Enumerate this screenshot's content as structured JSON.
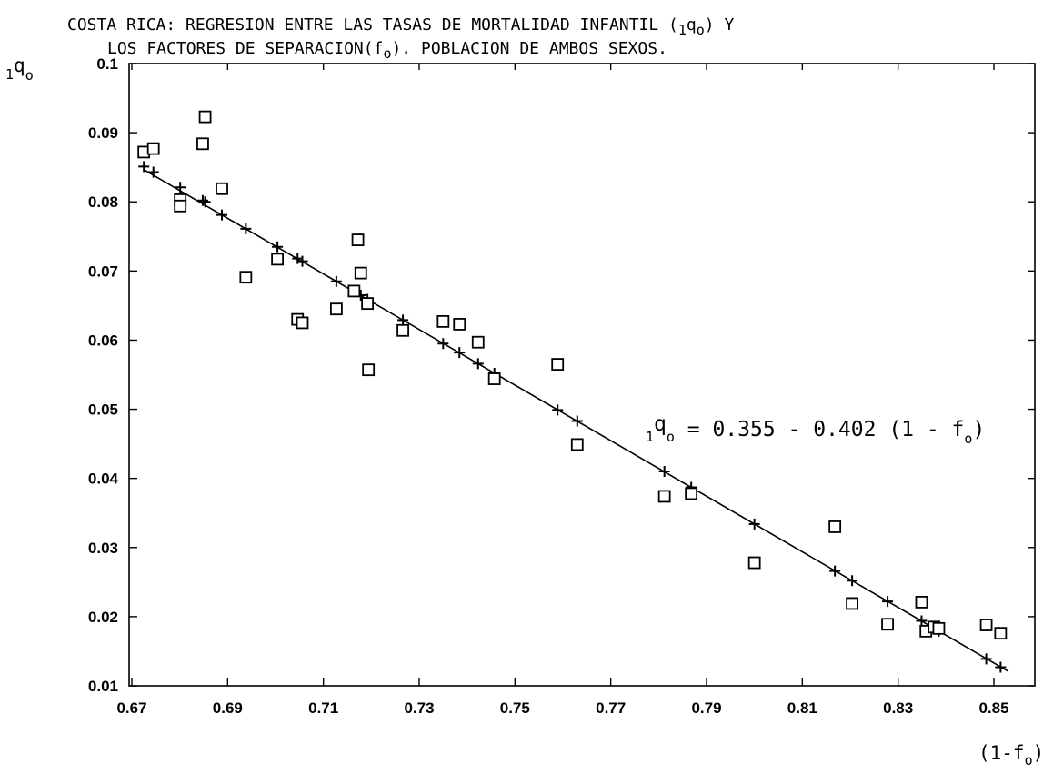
{
  "chart_data": {
    "type": "scatter",
    "title": {
      "line1_pre": "COSTA RICA: REGRESION ENTRE LAS TASAS DE MORTALIDAD INFANTIL (",
      "line1_q_sub_pre": "1",
      "line1_q": "q",
      "line1_q_sub_post": "o",
      "line1_post": ") Y",
      "line2_pre": "LOS FACTORES DE SEPARACION(f",
      "line2_sub": "o",
      "line2_post": "). POBLACION DE AMBOS SEXOS."
    },
    "ylabel": {
      "pre": "1",
      "main": "q",
      "sub": "o"
    },
    "xlabel": {
      "pre": "(1-f",
      "sub": "o",
      "post": ")"
    },
    "equation": {
      "pre": "1",
      "main": "q",
      "sub": "o",
      "rhs_pre": " = 0.355 - 0.402 (1 - f",
      "rhs_sub": "o",
      "rhs_post": ")"
    },
    "xlim": [
      0.67,
      0.855
    ],
    "ylim": [
      0.01,
      0.1
    ],
    "x_ticks": [
      0.67,
      0.69,
      0.71,
      0.73,
      0.75,
      0.77,
      0.79,
      0.81,
      0.83,
      0.85
    ],
    "x_tick_labels": [
      "0.67",
      "0.69",
      "0.71",
      "0.73",
      "0.75",
      "0.77",
      "0.79",
      "0.81",
      "0.83",
      "0.85"
    ],
    "y_ticks": [
      0.01,
      0.02,
      0.03,
      0.04,
      0.05,
      0.06,
      0.07,
      0.08,
      0.09,
      0.1
    ],
    "y_tick_labels": [
      "0.01",
      "0.02",
      "0.03",
      "0.04",
      "0.05",
      "0.06",
      "0.07",
      "0.08",
      "0.09",
      "0.1"
    ],
    "grid": false,
    "regression": {
      "intercept": 0.355,
      "slope": -0.402
    },
    "series": [
      {
        "marker": "square",
        "points": [
          [
            0.6725,
            0.0872
          ],
          [
            0.6745,
            0.0877
          ],
          [
            0.6801,
            0.0803
          ],
          [
            0.6801,
            0.0794
          ],
          [
            0.6848,
            0.0884
          ],
          [
            0.6853,
            0.0923
          ],
          [
            0.6888,
            0.0819
          ],
          [
            0.6938,
            0.0691
          ],
          [
            0.7004,
            0.0717
          ],
          [
            0.7046,
            0.063
          ],
          [
            0.7056,
            0.0625
          ],
          [
            0.7127,
            0.0645
          ],
          [
            0.7164,
            0.0671
          ],
          [
            0.7172,
            0.0745
          ],
          [
            0.7178,
            0.0697
          ],
          [
            0.7192,
            0.0653
          ],
          [
            0.7194,
            0.0557
          ],
          [
            0.7266,
            0.0614
          ],
          [
            0.735,
            0.0627
          ],
          [
            0.7384,
            0.0623
          ],
          [
            0.7423,
            0.0597
          ],
          [
            0.7457,
            0.0544
          ],
          [
            0.7589,
            0.0565
          ],
          [
            0.763,
            0.0449
          ],
          [
            0.7812,
            0.0374
          ],
          [
            0.7868,
            0.0378
          ],
          [
            0.8,
            0.0278
          ],
          [
            0.8168,
            0.033
          ],
          [
            0.8204,
            0.0219
          ],
          [
            0.8278,
            0.0189
          ],
          [
            0.8349,
            0.0221
          ],
          [
            0.8358,
            0.0179
          ],
          [
            0.8375,
            0.0185
          ],
          [
            0.8385,
            0.0183
          ],
          [
            0.8484,
            0.0188
          ],
          [
            0.8514,
            0.0176
          ]
        ]
      },
      {
        "marker": "plus",
        "points": [
          [
            0.6725,
            0.0851
          ],
          [
            0.6745,
            0.0843
          ],
          [
            0.6801,
            0.0821
          ],
          [
            0.6848,
            0.0802
          ],
          [
            0.6853,
            0.08
          ],
          [
            0.6888,
            0.0781
          ],
          [
            0.6938,
            0.0761
          ],
          [
            0.7004,
            0.0735
          ],
          [
            0.7046,
            0.0718
          ],
          [
            0.7056,
            0.0714
          ],
          [
            0.7127,
            0.0685
          ],
          [
            0.7164,
            0.067
          ],
          [
            0.7178,
            0.0665
          ],
          [
            0.7192,
            0.0659
          ],
          [
            0.7266,
            0.0629
          ],
          [
            0.735,
            0.0595
          ],
          [
            0.7384,
            0.0582
          ],
          [
            0.7423,
            0.0566
          ],
          [
            0.7457,
            0.0552
          ],
          [
            0.7589,
            0.0499
          ],
          [
            0.763,
            0.0483
          ],
          [
            0.7812,
            0.041
          ],
          [
            0.7868,
            0.0387
          ],
          [
            0.8,
            0.0334
          ],
          [
            0.8168,
            0.0266
          ],
          [
            0.8204,
            0.0252
          ],
          [
            0.8278,
            0.0222
          ],
          [
            0.8349,
            0.0194
          ],
          [
            0.8375,
            0.0183
          ],
          [
            0.8385,
            0.0179
          ],
          [
            0.8484,
            0.0139
          ],
          [
            0.8514,
            0.0127
          ]
        ]
      }
    ]
  }
}
